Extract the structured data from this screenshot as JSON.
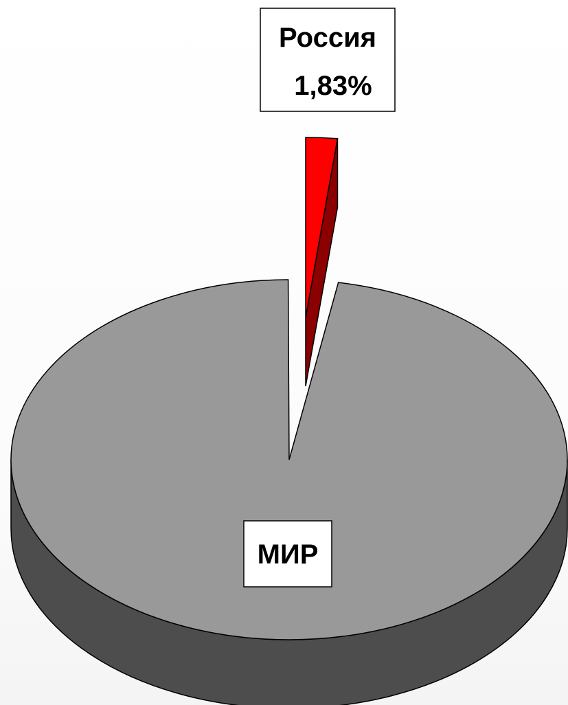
{
  "chart_data": {
    "type": "pie",
    "style": "3d-exploded",
    "slices": [
      {
        "name": "Россия",
        "label": "Россия",
        "value_label": "1,83%",
        "value": 1.83,
        "color": "#ff0000",
        "side_color": "#8b0000",
        "exploded": true
      },
      {
        "name": "МИР",
        "label": "МИР",
        "value_label": "",
        "value": 98.17,
        "color": "#999999",
        "side_color": "#4d4d4d",
        "exploded": false
      }
    ],
    "title": "",
    "legend": "none"
  }
}
